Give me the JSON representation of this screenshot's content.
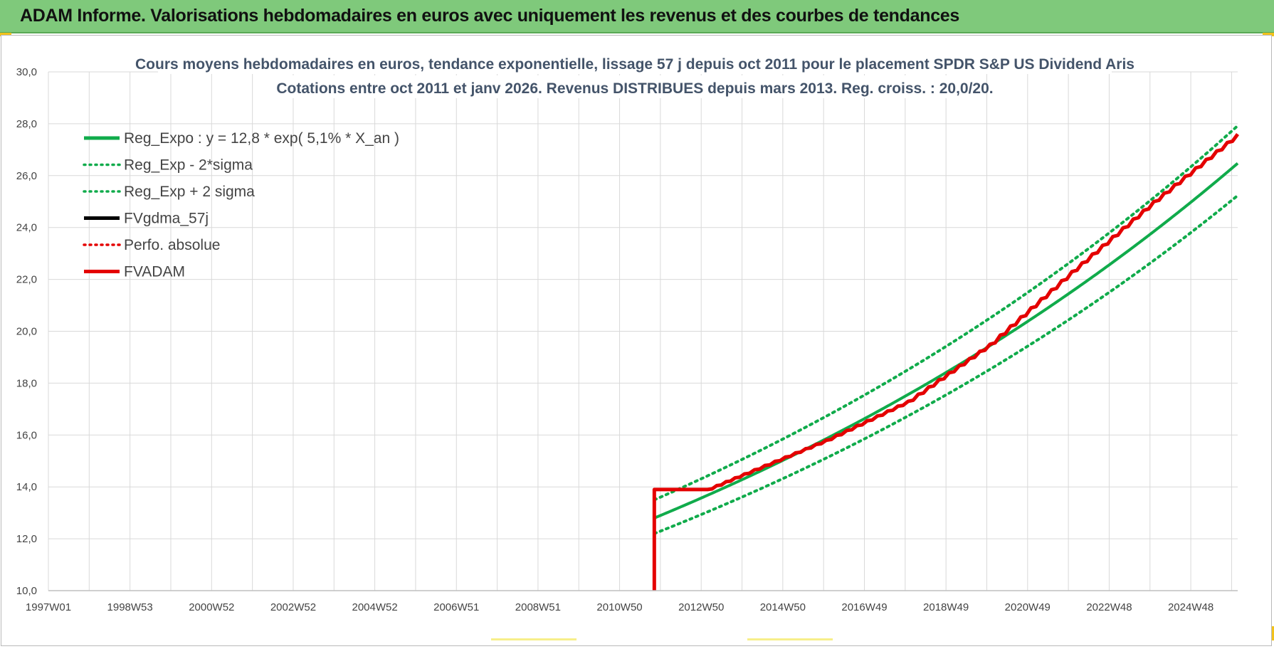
{
  "header": {
    "title": "ADAM Informe. Valorisations hebdomadaires en euros avec uniquement les revenus et des courbes de tendances"
  },
  "colors": {
    "header_bg": "#7fc97b",
    "green": "#10ab4b",
    "red": "#e40000",
    "black": "#000000",
    "title_text": "#44546a",
    "grid": "#d9d9d9"
  },
  "chart_data": {
    "type": "line",
    "title": "Cours moyens hebdomadaires en euros, tendance exponentielle, lissage 57 j depuis oct 2011 pour le placement SPDR S&P US Dividend Aris",
    "subtitle": "Cotations entre oct 2011 et janv 2026. Revenus DISTRIBUES depuis mars 2013. Reg. croiss. : 20,0/20.",
    "xlabel": "",
    "ylabel": "",
    "x_tick_labels": [
      "1997W01",
      "1998W53",
      "2000W52",
      "2002W52",
      "2004W52",
      "2006W51",
      "2008W51",
      "2010W50",
      "2012W50",
      "2014W50",
      "2016W49",
      "2018W49",
      "2020W49",
      "2022W48",
      "2024W48"
    ],
    "x_range_years": [
      1997.0,
      2026.05
    ],
    "ylim": [
      10.0,
      30.0
    ],
    "y_tick_labels": [
      "10,0",
      "12,0",
      "14,0",
      "16,0",
      "18,0",
      "20,0",
      "22,0",
      "24,0",
      "26,0",
      "28,0",
      "30,0"
    ],
    "grid": true,
    "legend_position": "top-left",
    "regression": {
      "base": 12.8,
      "rate": 0.051,
      "start_year": 2011.8,
      "end_year": 2026.05
    },
    "series": [
      {
        "name": "Reg_Expo : y = 12,8 * exp( 5,1% *  X_an )",
        "color": "#10ab4b",
        "style": "solid",
        "width": 4,
        "x": [
          2011.8,
          2014,
          2016,
          2018,
          2020,
          2022,
          2024,
          2026.05
        ],
        "y": [
          12.8,
          14.4,
          16.0,
          17.8,
          19.7,
          21.9,
          24.3,
          26.8
        ]
      },
      {
        "name": "Reg_Exp - 2*sigma",
        "color": "#10ab4b",
        "style": "dotted",
        "width": 4,
        "x": [
          2011.8,
          2014,
          2016,
          2018,
          2020,
          2022,
          2024,
          2026.05
        ],
        "y": [
          12.2,
          13.7,
          15.2,
          16.9,
          18.8,
          20.8,
          23.1,
          25.5
        ]
      },
      {
        "name": "Reg_Exp + 2 sigma",
        "color": "#10ab4b",
        "style": "dotted",
        "width": 4,
        "x": [
          2011.8,
          2014,
          2016,
          2018,
          2020,
          2022,
          2024,
          2026.05
        ],
        "y": [
          13.5,
          15.1,
          16.8,
          18.7,
          20.7,
          23.0,
          25.6,
          28.1
        ]
      },
      {
        "name": "FVgdma_57j",
        "color": "#000000",
        "style": "solid",
        "width": 3,
        "x": [],
        "y": []
      },
      {
        "name": "Perfo. absolue",
        "color": "#e40000",
        "style": "dotted",
        "width": 3,
        "x": [],
        "y": []
      },
      {
        "name": "FVADAM",
        "color": "#e40000",
        "style": "solid",
        "width": 5,
        "x": [
          2011.8,
          2011.8,
          2013.1,
          2014,
          2016,
          2018,
          2020,
          2022,
          2024,
          2026.05
        ],
        "y": [
          10.0,
          13.9,
          13.9,
          14.5,
          15.8,
          17.3,
          19.5,
          22.3,
          25.0,
          27.6
        ]
      }
    ]
  }
}
